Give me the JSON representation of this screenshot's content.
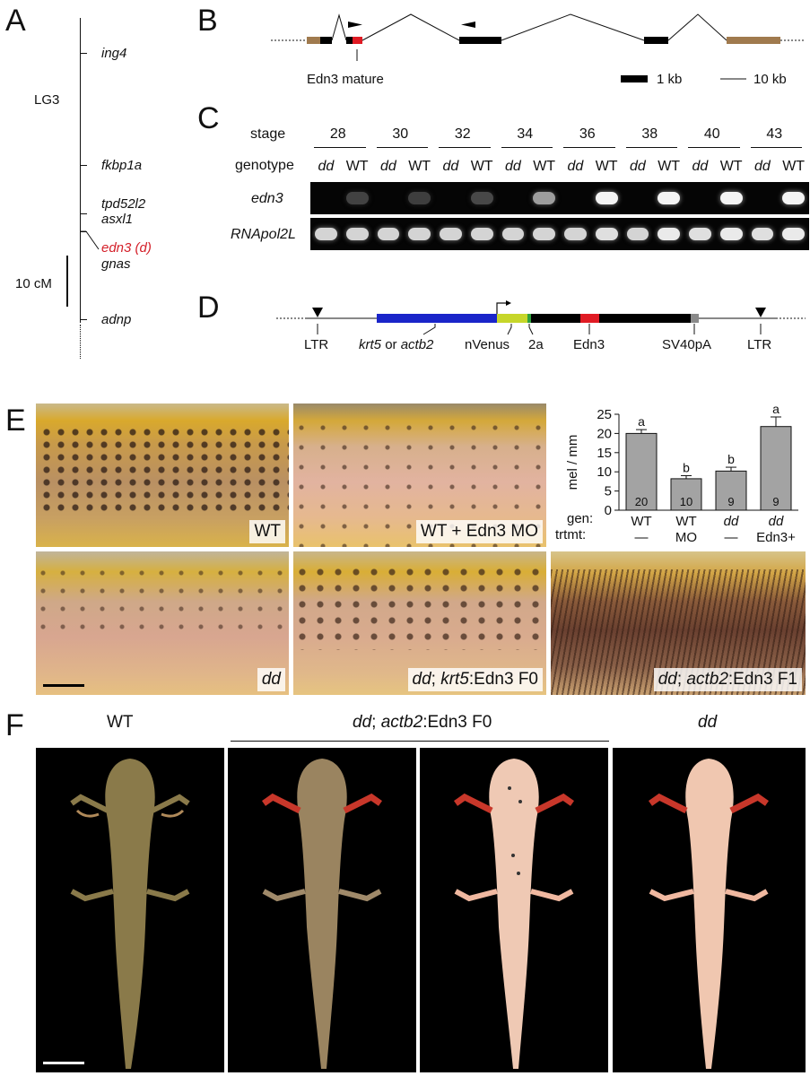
{
  "panels": {
    "a": "A",
    "b": "B",
    "c": "C",
    "d": "D",
    "e": "E",
    "f": "F"
  },
  "panel_a": {
    "chromosome": "LG3",
    "genes": [
      "ing4",
      "fkbp1a",
      "tpd52l2",
      "asxl1",
      "edn3 (d)",
      "gnas",
      "adnp"
    ],
    "highlight_gene": "edn3 (d)",
    "highlight_color": "#d4202a",
    "scale_label": "10 cM"
  },
  "panel_b": {
    "mature_label": "Edn3 mature",
    "scale_exon": "1 kb",
    "scale_intron": "10 kb",
    "colors": {
      "utr": "#a07a4e",
      "edn3": "#e01b24",
      "exon": "#000000"
    }
  },
  "panel_c": {
    "stage_label": "stage",
    "stages": [
      "28",
      "30",
      "32",
      "34",
      "36",
      "38",
      "40",
      "43"
    ],
    "genotype_label": "genotype",
    "genotypes": [
      "dd",
      "WT"
    ],
    "rows": [
      "edn3",
      "RNApol2L"
    ],
    "edn3_intensity": [
      0,
      0.12,
      0,
      0.1,
      0,
      0.15,
      0,
      0.55,
      0,
      0.95,
      0,
      0.95,
      0,
      0.95,
      0,
      0.95
    ],
    "pol2_intensity": [
      0.8,
      0.8,
      0.8,
      0.8,
      0.8,
      0.8,
      0.8,
      0.8,
      0.8,
      0.85,
      0.8,
      0.9,
      0.85,
      0.9,
      0.85,
      0.9
    ]
  },
  "panel_d": {
    "labels": [
      "LTR",
      "krt5 or actb2",
      "nVenus",
      "2a",
      "Edn3",
      "SV40pA",
      "LTR"
    ],
    "krt5": "krt5",
    "or": "or",
    "actb2": "actb2",
    "colors": {
      "promoter": "#1a25c9",
      "nvenus": "#c6d62a",
      "twoa": "#2ea23c",
      "edn3": "#e01b24",
      "sv40": "#8a8a8a"
    }
  },
  "panel_e": {
    "photos": [
      "WT",
      "WT + Edn3 MO",
      "dd",
      "dd; krt5:Edn3 F0",
      "dd; actb2:Edn3 F1"
    ],
    "chart_data": {
      "type": "bar",
      "categories": [
        "WT —",
        "WT MO",
        "dd —",
        "dd Edn3+"
      ],
      "gen": [
        "WT",
        "WT",
        "dd",
        "dd"
      ],
      "trtmt": [
        "—",
        "MO",
        "—",
        "Edn3+"
      ],
      "values": [
        20,
        8.2,
        10.2,
        21.8
      ],
      "errors": [
        1.0,
        0.8,
        1.0,
        2.5
      ],
      "n": [
        "20",
        "10",
        "9",
        "9"
      ],
      "letters": [
        "a",
        "b",
        "b",
        "a"
      ],
      "ylabel": "mel / mm",
      "ylim": [
        0,
        25
      ],
      "yticks": [
        "0",
        "5",
        "10",
        "15",
        "20",
        "25"
      ],
      "gen_label": "gen:",
      "trtmt_label": "trtmt:",
      "bar_color": "#a3a3a3"
    }
  },
  "panel_f": {
    "labels": [
      "WT",
      "dd; actb2:Edn3 F0",
      "dd"
    ]
  }
}
